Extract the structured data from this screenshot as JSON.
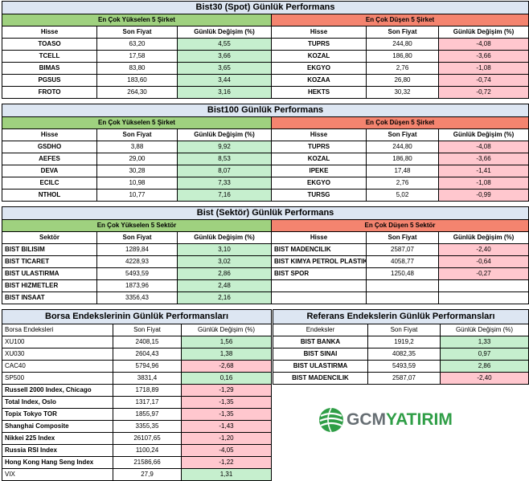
{
  "bist30": {
    "title": "Bist30 (Spot) Günlük Performans",
    "gain_header": "En Çok Yükselen 5 Şirket",
    "loss_header": "En Çok Düşen 5 Şirket",
    "columns": [
      "Hisse",
      "Son Fiyat",
      "Günlük Değişim (%)"
    ],
    "gainers": [
      [
        "TOASO",
        "63,20",
        "4,55"
      ],
      [
        "TCELL",
        "17,58",
        "3,66"
      ],
      [
        "BIMAS",
        "83,80",
        "3,65"
      ],
      [
        "PGSUS",
        "183,60",
        "3,44"
      ],
      [
        "FROTO",
        "264,30",
        "3,16"
      ]
    ],
    "losers": [
      [
        "TUPRS",
        "244,80",
        "-4,08"
      ],
      [
        "KOZAL",
        "186,80",
        "-3,66"
      ],
      [
        "EKGYO",
        "2,76",
        "-1,08"
      ],
      [
        "KOZAA",
        "26,80",
        "-0,74"
      ],
      [
        "HEKTS",
        "30,32",
        "-0,72"
      ]
    ]
  },
  "bist100": {
    "title": "Bist100 Günlük Performans",
    "gain_header": "En Çok Yükselen 5 Şirket",
    "loss_header": "En Çok Düşen 5 Şirket",
    "columns": [
      "Hisse",
      "Son Fiyat",
      "Günlük Değişim (%)"
    ],
    "gainers": [
      [
        "GSDHO",
        "3,88",
        "9,92"
      ],
      [
        "AEFES",
        "29,00",
        "8,53"
      ],
      [
        "DEVA",
        "30,28",
        "8,07"
      ],
      [
        "ECILC",
        "10,98",
        "7,33"
      ],
      [
        "NTHOL",
        "10,77",
        "7,16"
      ]
    ],
    "losers": [
      [
        "TUPRS",
        "244,80",
        "-4,08"
      ],
      [
        "KOZAL",
        "186,80",
        "-3,66"
      ],
      [
        "IPEKE",
        "17,48",
        "-1,41"
      ],
      [
        "EKGYO",
        "2,76",
        "-1,08"
      ],
      [
        "TURSG",
        "5,02",
        "-0,99"
      ]
    ]
  },
  "sector": {
    "title": "Bist (Sektör) Günlük Performans",
    "gain_header": "En Çok Yükselen 5 Sektör",
    "loss_header": "En Çok Düşen 5 Sektör",
    "gain_columns": [
      "Sektör",
      "Son Fiyat",
      "Günlük Değişim (%)"
    ],
    "loss_columns": [
      "Hisse",
      "Son Fiyat",
      "Günlük Değişim (%)"
    ],
    "gainers": [
      [
        "BIST BILISIM",
        "1289,84",
        "3,10"
      ],
      [
        "BIST TICARET",
        "4228,93",
        "3,02"
      ],
      [
        "BIST ULASTIRMA",
        "5493,59",
        "2,86"
      ],
      [
        "BIST HIZMETLER",
        "1873,96",
        "2,48"
      ],
      [
        "BIST INSAAT",
        "3356,43",
        "2,16"
      ]
    ],
    "losers": [
      [
        "BIST MADENCILIK",
        "2587,07",
        "-2,40"
      ],
      [
        "BIST KIMYA PETROL PLASTIK",
        "4058,77",
        "-0,64"
      ],
      [
        "BIST SPOR",
        "1250,48",
        "-0,27"
      ]
    ]
  },
  "borsa": {
    "title": "Borsa Endekslerinin Günlük Performansları",
    "columns": [
      "Borsa Endeksleri",
      "Son Fiyat",
      "Günlük Değişim (%)"
    ],
    "rows": [
      [
        "XU100",
        "2408,15",
        "1,56"
      ],
      [
        "XU030",
        "2604,43",
        "1,38"
      ],
      [
        "CAC40",
        "5794,96",
        "-2,68"
      ],
      [
        "SP500",
        "3831,4",
        "0,16"
      ],
      [
        "Russell 2000 Index, Chicago",
        "1718,89",
        "-1,29"
      ],
      [
        "Total Index, Oslo",
        "1317,17",
        "-1,35"
      ],
      [
        "Topix Tokyo TOR",
        "1855,97",
        "-1,35"
      ],
      [
        "Shanghai Composite",
        "3355,35",
        "-1,43"
      ],
      [
        "Nikkei 225 Index",
        "26107,65",
        "-1,20"
      ],
      [
        "Russia RSI Index",
        "1100,24",
        "-4,05"
      ],
      [
        "Hong Kong Hang Seng Index",
        "21586,66",
        "-1,22"
      ],
      [
        "VIX",
        "27,9",
        "1,31"
      ]
    ]
  },
  "referans": {
    "title": "Referans Endekslerin  Günlük Performansları",
    "columns": [
      "Endeksler",
      "Son Fiyat",
      "Günlük Değişim (%)"
    ],
    "rows": [
      [
        "BIST BANKA",
        "1919,2",
        "1,33"
      ],
      [
        "BIST SINAI",
        "4082,35",
        "0,97"
      ],
      [
        "BIST ULASTIRMA",
        "5493,59",
        "2,86"
      ],
      [
        "BIST MADENCILIK",
        "2587,07",
        "-2,40"
      ]
    ]
  },
  "logo": {
    "brand_a": "GCM",
    "brand_b": "YATIRIM",
    "icon": "gcm-globe-logo-icon"
  }
}
